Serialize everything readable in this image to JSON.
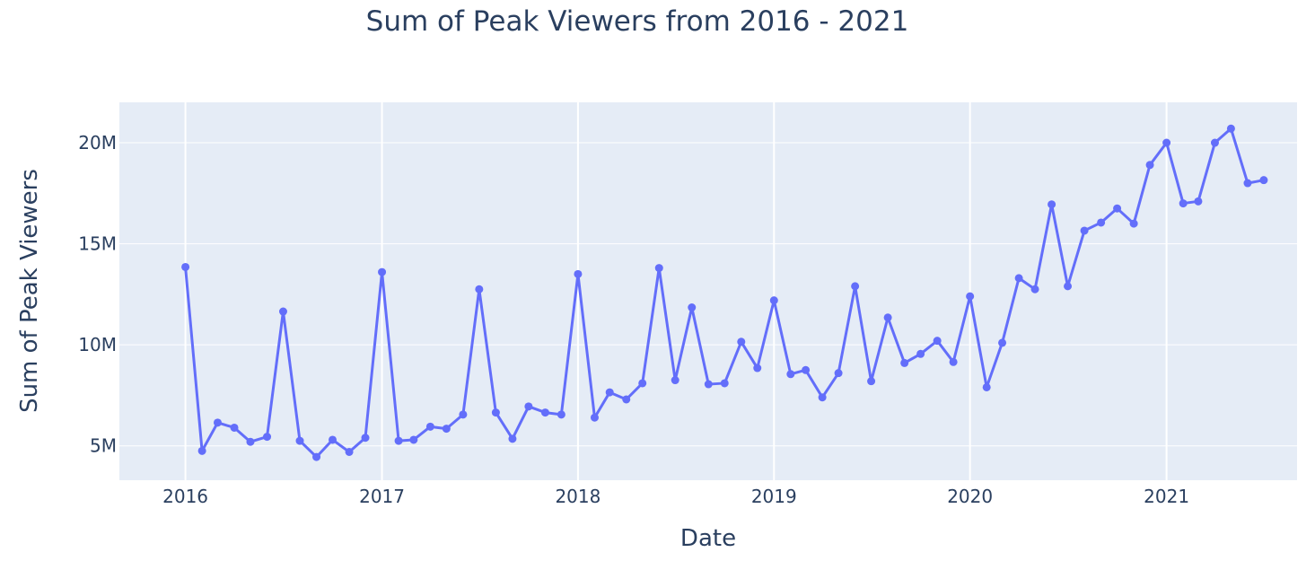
{
  "chart_data": {
    "type": "line",
    "title": "Sum of Peak Viewers from 2016 - 2021",
    "xlabel": "Date",
    "ylabel": "Sum of Peak Viewers",
    "x_range": [
      "2015-08-31",
      "2021-09-01"
    ],
    "ylim": [
      3300000,
      22000000
    ],
    "x_ticks": [
      {
        "date": "2016-01-01",
        "label": "2016"
      },
      {
        "date": "2017-01-01",
        "label": "2017"
      },
      {
        "date": "2018-01-01",
        "label": "2018"
      },
      {
        "date": "2019-01-01",
        "label": "2019"
      },
      {
        "date": "2020-01-01",
        "label": "2020"
      },
      {
        "date": "2021-01-01",
        "label": "2021"
      }
    ],
    "y_ticks": [
      {
        "value": 5000000,
        "label": "5M"
      },
      {
        "value": 10000000,
        "label": "10M"
      },
      {
        "value": 15000000,
        "label": "15M"
      },
      {
        "value": 20000000,
        "label": "20M"
      }
    ],
    "grid": true,
    "series": [
      {
        "color": "#636efa",
        "mode": "lines+markers",
        "x": [
          "2016-01-01",
          "2016-02-01",
          "2016-03-01",
          "2016-04-01",
          "2016-05-01",
          "2016-06-01",
          "2016-07-01",
          "2016-08-01",
          "2016-09-01",
          "2016-10-01",
          "2016-11-01",
          "2016-12-01",
          "2017-01-01",
          "2017-02-01",
          "2017-03-01",
          "2017-04-01",
          "2017-05-01",
          "2017-06-01",
          "2017-07-01",
          "2017-08-01",
          "2017-09-01",
          "2017-10-01",
          "2017-11-01",
          "2017-12-01",
          "2018-01-01",
          "2018-02-01",
          "2018-03-01",
          "2018-04-01",
          "2018-05-01",
          "2018-06-01",
          "2018-07-01",
          "2018-08-01",
          "2018-09-01",
          "2018-10-01",
          "2018-11-01",
          "2018-12-01",
          "2019-01-01",
          "2019-02-01",
          "2019-03-01",
          "2019-04-01",
          "2019-05-01",
          "2019-06-01",
          "2019-07-01",
          "2019-08-01",
          "2019-09-01",
          "2019-10-01",
          "2019-11-01",
          "2019-12-01",
          "2020-01-01",
          "2020-02-01",
          "2020-03-01",
          "2020-04-01",
          "2020-05-01",
          "2020-06-01",
          "2020-07-01",
          "2020-08-01",
          "2020-09-01",
          "2020-10-01",
          "2020-11-01",
          "2020-12-01",
          "2021-01-01",
          "2021-02-01",
          "2021-03-01",
          "2021-04-01",
          "2021-05-01",
          "2021-06-01",
          "2021-07-01"
        ],
        "y": [
          13850000,
          4750000,
          6150000,
          5900000,
          5200000,
          5450000,
          11650000,
          5250000,
          4450000,
          5300000,
          4700000,
          5400000,
          13600000,
          5250000,
          5300000,
          5950000,
          5850000,
          6550000,
          12750000,
          6650000,
          5350000,
          6950000,
          6650000,
          6550000,
          13500000,
          6400000,
          7650000,
          7300000,
          8100000,
          13800000,
          8250000,
          11850000,
          8050000,
          8100000,
          10150000,
          8850000,
          12200000,
          8550000,
          8750000,
          7400000,
          8600000,
          12900000,
          8200000,
          11350000,
          9100000,
          9550000,
          10200000,
          9150000,
          12400000,
          7900000,
          10100000,
          13300000,
          12750000,
          16950000,
          12900000,
          15650000,
          16050000,
          16750000,
          16000000,
          18900000,
          20000000,
          17000000,
          17100000,
          20000000,
          20700000,
          18000000,
          18150000
        ]
      }
    ]
  }
}
